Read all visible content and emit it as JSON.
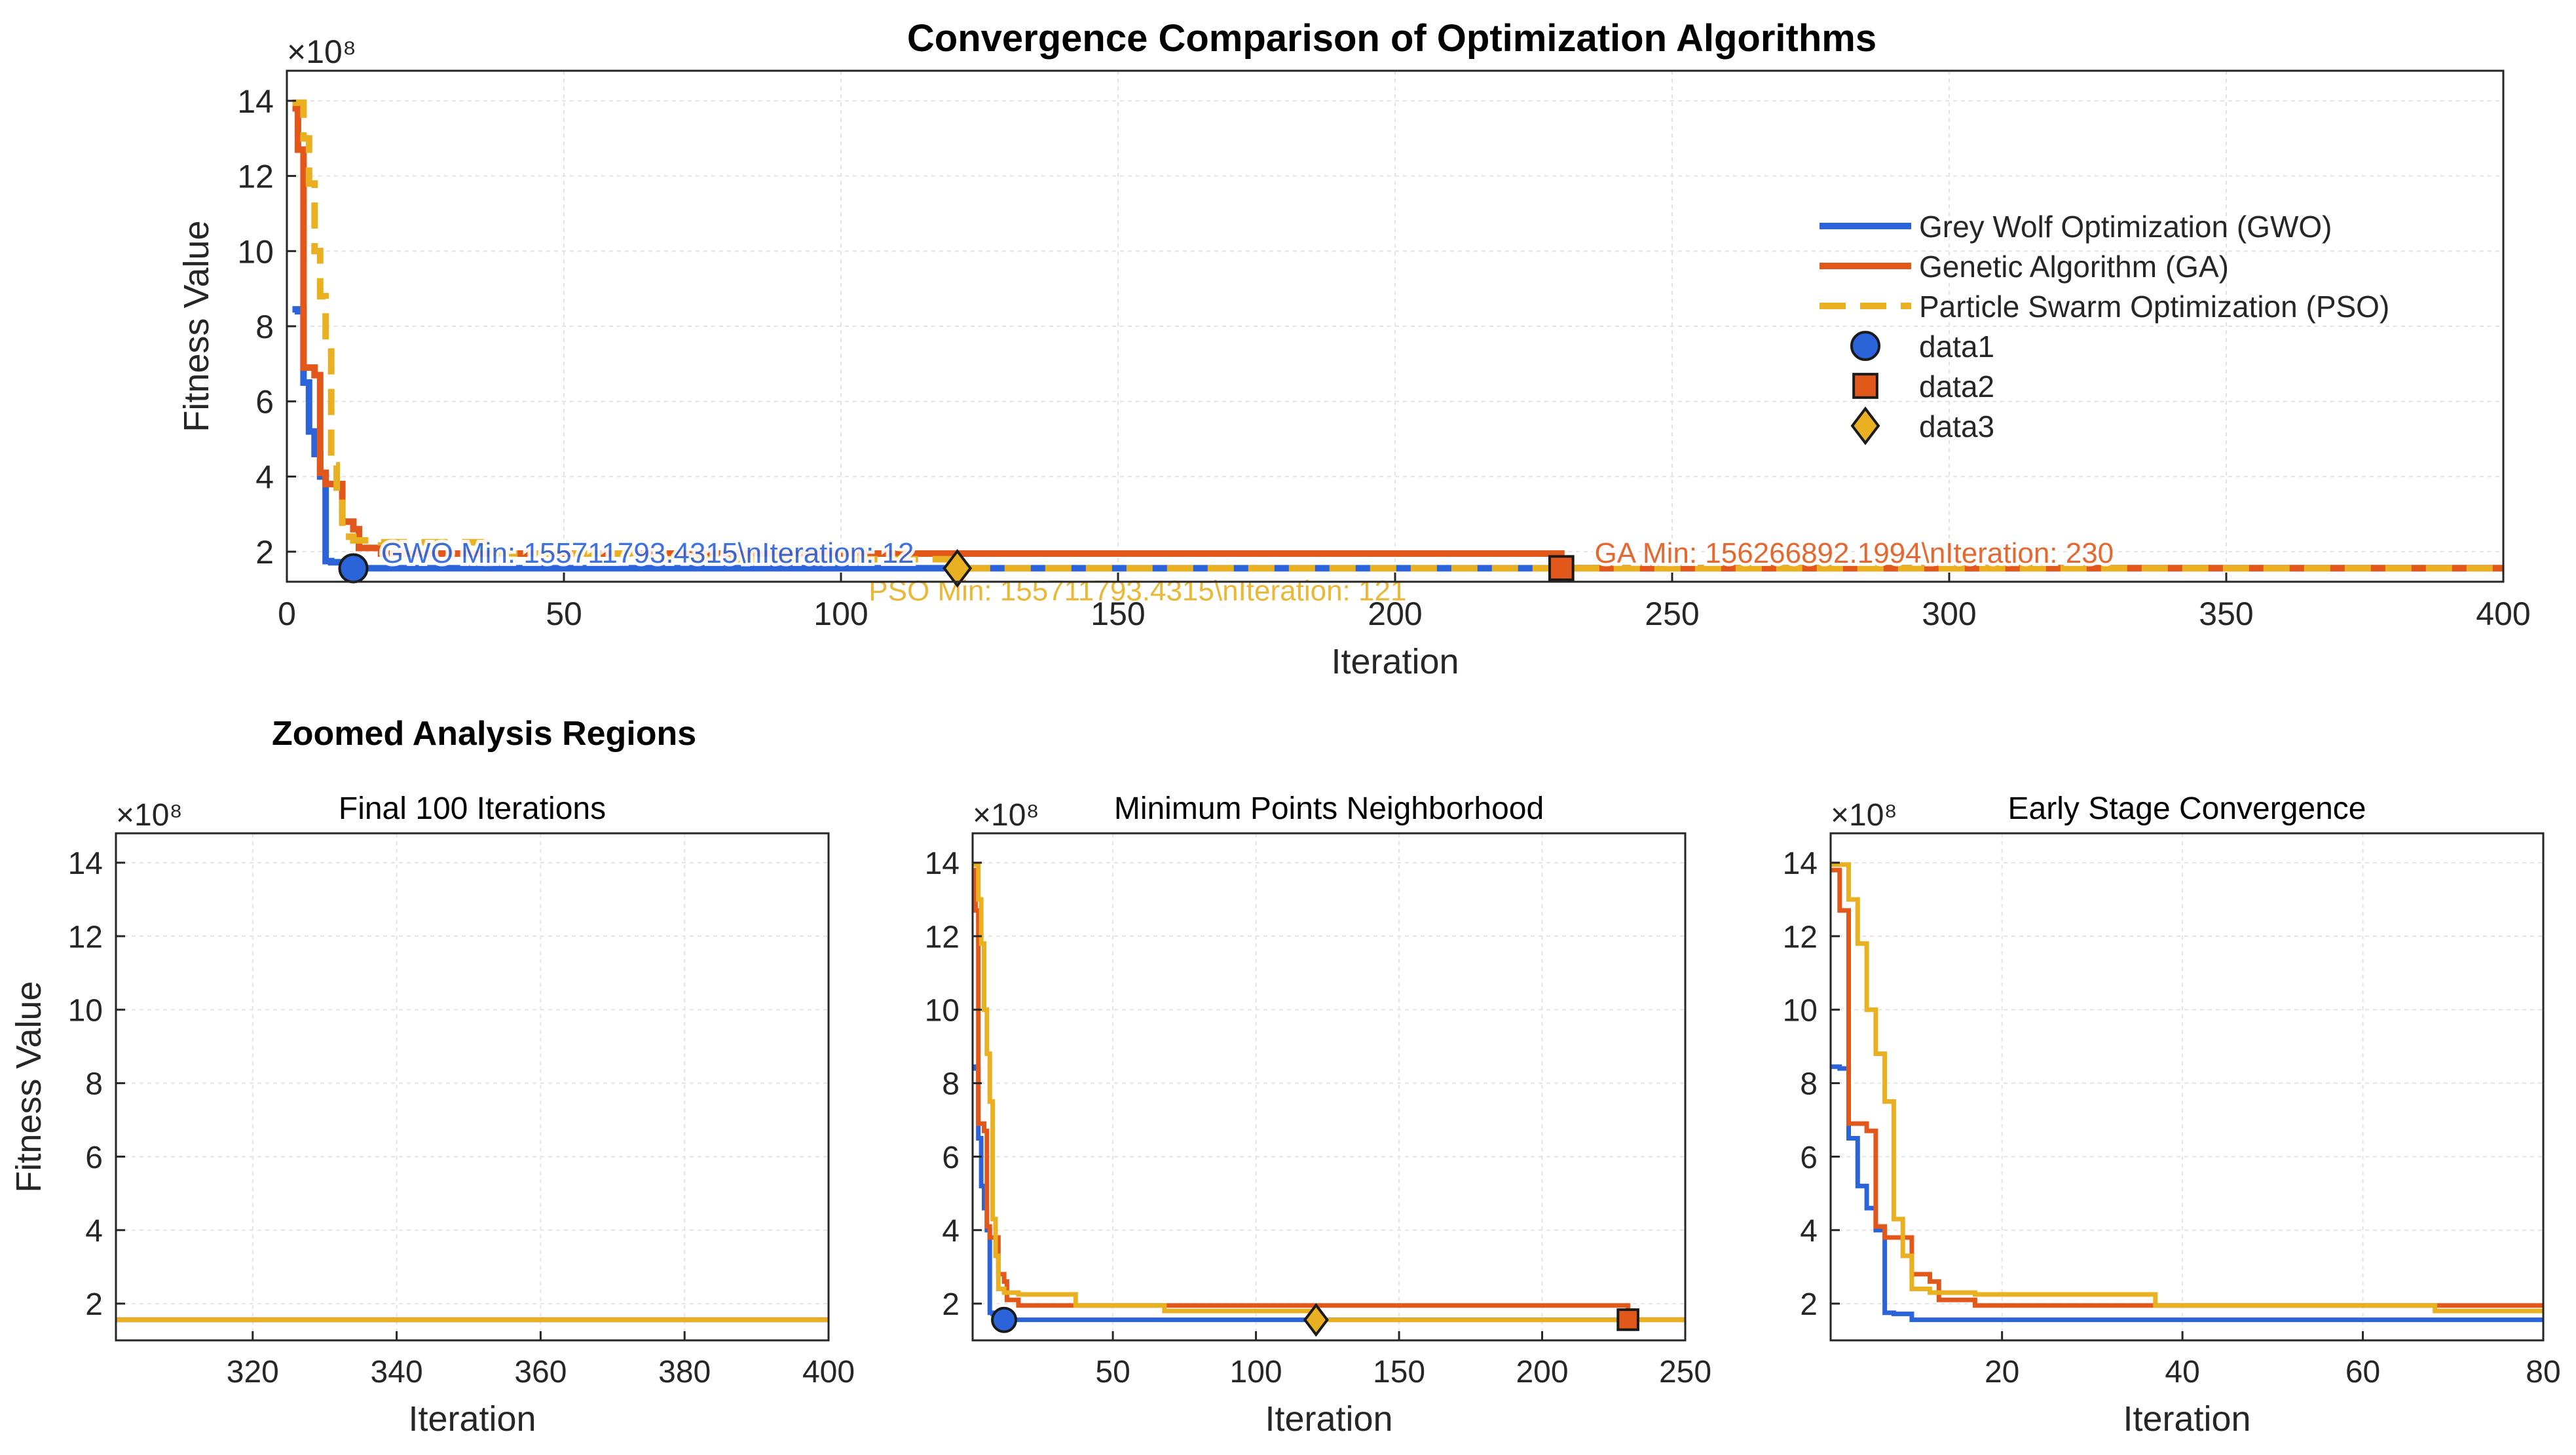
{
  "figure": {
    "main_title": "Convergence Comparison of Optimization Algorithms",
    "section_title": "Zoomed Analysis Regions"
  },
  "colors": {
    "gwo": "#2b63d9",
    "ga": "#e2581b",
    "pso": "#e9b021",
    "grid": "#e4e4e4",
    "axis": "#262626"
  },
  "chart_data": [
    {
      "id": "main",
      "type": "line",
      "title": "Convergence Comparison of Optimization Algorithms",
      "xlabel": "Iteration",
      "ylabel": "Fitness Value",
      "exponent_label": "×10⁸",
      "xlim": [
        0,
        400
      ],
      "ylim": [
        1.2,
        14.8
      ],
      "xticks": [
        0,
        50,
        100,
        150,
        200,
        250,
        300,
        350,
        400
      ],
      "yticks": [
        2,
        4,
        6,
        8,
        10,
        12,
        14
      ],
      "grid": true,
      "legend_position": "right",
      "legend": [
        "Grey Wolf Optimization (GWO)",
        "Genetic Algorithm (GA)",
        "Particle Swarm Optimization (PSO)",
        "data1",
        "data2",
        "data3"
      ],
      "series": [
        {
          "name": "Grey Wolf Optimization (GWO)",
          "style": "solid",
          "color": "#2b63d9",
          "x": [
            1,
            2,
            3,
            4,
            5,
            6,
            7,
            8,
            10,
            400
          ],
          "y": [
            8.45,
            8.4,
            6.5,
            5.2,
            4.6,
            4.0,
            1.75,
            1.72,
            1.56,
            1.557
          ]
        },
        {
          "name": "Genetic Algorithm (GA)",
          "style": "solid",
          "color": "#e2581b",
          "x": [
            1,
            2,
            3,
            4,
            5,
            6,
            7,
            8,
            10,
            12,
            13,
            17,
            229,
            230,
            400
          ],
          "y": [
            13.8,
            12.7,
            6.9,
            6.9,
            6.7,
            4.1,
            3.8,
            3.8,
            2.8,
            2.6,
            2.1,
            1.95,
            1.95,
            1.5627,
            1.5627
          ]
        },
        {
          "name": "Particle Swarm Optimization (PSO)",
          "style": "dashed",
          "color": "#e9b021",
          "x": [
            1,
            2,
            3,
            4,
            5,
            6,
            7,
            8,
            9,
            10,
            12,
            17,
            36,
            37,
            67,
            68,
            120,
            121,
            400
          ],
          "y": [
            13.95,
            13.95,
            13.0,
            11.8,
            10.0,
            8.8,
            7.5,
            4.3,
            3.3,
            2.4,
            2.3,
            2.25,
            2.25,
            1.95,
            1.95,
            1.8,
            1.8,
            1.557,
            1.557
          ]
        }
      ],
      "markers": [
        {
          "name": "data1",
          "shape": "circle",
          "color": "#2b63d9",
          "x": 12,
          "y": 1.557
        },
        {
          "name": "data2",
          "shape": "square",
          "color": "#e2581b",
          "x": 230,
          "y": 1.5627
        },
        {
          "name": "data3",
          "shape": "diamond",
          "color": "#e9b021",
          "x": 121,
          "y": 1.557
        }
      ],
      "annotations": [
        {
          "text": "GWO Min: 155711793.4315\\nIteration: 12",
          "color": "#2b63d9",
          "x": 17,
          "y": 1.95
        },
        {
          "text": "GA Min: 156266892.1994\\nIteration: 230",
          "color": "#e2581b",
          "x": 236,
          "y": 1.95
        },
        {
          "text": "PSO Min: 155711793.4315\\nIteration: 121",
          "color": "#e9b021",
          "x": 105,
          "y": 0.95
        }
      ]
    },
    {
      "id": "final100",
      "type": "line",
      "title": "Final 100 Iterations",
      "xlabel": "Iteration",
      "ylabel": "Fitness Value",
      "exponent_label": "×10⁸",
      "xlim": [
        301,
        400
      ],
      "ylim": [
        1.0,
        14.8
      ],
      "xticks": [
        320,
        340,
        360,
        380,
        400
      ],
      "yticks": [
        2,
        4,
        6,
        8,
        10,
        12,
        14
      ],
      "grid": true,
      "series": [
        {
          "name": "GWO",
          "color": "#2b63d9",
          "x": [
            301,
            400
          ],
          "y": [
            1.557,
            1.557
          ]
        },
        {
          "name": "GA",
          "color": "#e2581b",
          "x": [
            301,
            400
          ],
          "y": [
            1.5627,
            1.5627
          ]
        },
        {
          "name": "PSO",
          "color": "#e9b021",
          "x": [
            301,
            400
          ],
          "y": [
            1.557,
            1.557
          ]
        }
      ]
    },
    {
      "id": "minneigh",
      "type": "line",
      "title": "Minimum Points Neighborhood",
      "xlabel": "Iteration",
      "exponent_label": "×10⁸",
      "xlim": [
        1,
        250
      ],
      "ylim": [
        1.0,
        14.8
      ],
      "xticks": [
        50,
        100,
        150,
        200,
        250
      ],
      "yticks": [
        2,
        4,
        6,
        8,
        10,
        12,
        14
      ],
      "grid": true,
      "series": [
        {
          "name": "GWO",
          "color": "#2b63d9",
          "x": [
            1,
            2,
            3,
            4,
            5,
            6,
            7,
            8,
            10,
            250
          ],
          "y": [
            8.45,
            8.4,
            6.5,
            5.2,
            4.6,
            4.0,
            1.75,
            1.72,
            1.56,
            1.557
          ]
        },
        {
          "name": "GA",
          "color": "#e2581b",
          "x": [
            1,
            2,
            3,
            4,
            5,
            6,
            7,
            8,
            10,
            12,
            13,
            17,
            229,
            230,
            250
          ],
          "y": [
            13.8,
            12.7,
            6.9,
            6.9,
            6.7,
            4.1,
            3.8,
            3.8,
            2.8,
            2.6,
            2.1,
            1.95,
            1.95,
            1.5627,
            1.5627
          ]
        },
        {
          "name": "PSO",
          "color": "#e9b021",
          "x": [
            1,
            2,
            3,
            4,
            5,
            6,
            7,
            8,
            9,
            10,
            12,
            17,
            36,
            37,
            67,
            68,
            120,
            121,
            250
          ],
          "y": [
            13.95,
            13.95,
            13.0,
            11.8,
            10.0,
            8.8,
            7.5,
            4.3,
            3.3,
            2.4,
            2.3,
            2.25,
            2.25,
            1.95,
            1.95,
            1.8,
            1.8,
            1.557,
            1.557
          ]
        }
      ],
      "markers": [
        {
          "name": "data1",
          "shape": "circle",
          "color": "#2b63d9",
          "x": 12,
          "y": 1.557
        },
        {
          "name": "data2",
          "shape": "square",
          "color": "#e2581b",
          "x": 230,
          "y": 1.5627
        },
        {
          "name": "data3",
          "shape": "diamond",
          "color": "#e9b021",
          "x": 121,
          "y": 1.557
        }
      ]
    },
    {
      "id": "early",
      "type": "line",
      "title": "Early Stage Convergence",
      "xlabel": "Iteration",
      "exponent_label": "×10⁸",
      "xlim": [
        1,
        80
      ],
      "ylim": [
        1.0,
        14.8
      ],
      "xticks": [
        20,
        40,
        60,
        80
      ],
      "yticks": [
        2,
        4,
        6,
        8,
        10,
        12,
        14
      ],
      "grid": true,
      "series": [
        {
          "name": "GWO",
          "color": "#2b63d9",
          "x": [
            1,
            2,
            3,
            4,
            5,
            6,
            7,
            8,
            10,
            80
          ],
          "y": [
            8.45,
            8.4,
            6.5,
            5.2,
            4.6,
            4.0,
            1.75,
            1.72,
            1.56,
            1.557
          ]
        },
        {
          "name": "GA",
          "color": "#e2581b",
          "x": [
            1,
            2,
            3,
            4,
            5,
            6,
            7,
            8,
            10,
            12,
            13,
            17,
            80
          ],
          "y": [
            13.8,
            12.7,
            6.9,
            6.9,
            6.7,
            4.1,
            3.8,
            3.8,
            2.8,
            2.6,
            2.1,
            1.95,
            1.95
          ]
        },
        {
          "name": "PSO",
          "color": "#e9b021",
          "x": [
            1,
            2,
            3,
            4,
            5,
            6,
            7,
            8,
            9,
            10,
            12,
            17,
            36,
            37,
            67,
            68,
            80
          ],
          "y": [
            13.95,
            13.95,
            13.0,
            11.8,
            10.0,
            8.8,
            7.5,
            4.3,
            3.3,
            2.4,
            2.3,
            2.25,
            2.25,
            1.95,
            1.95,
            1.8,
            1.8
          ]
        }
      ]
    }
  ]
}
